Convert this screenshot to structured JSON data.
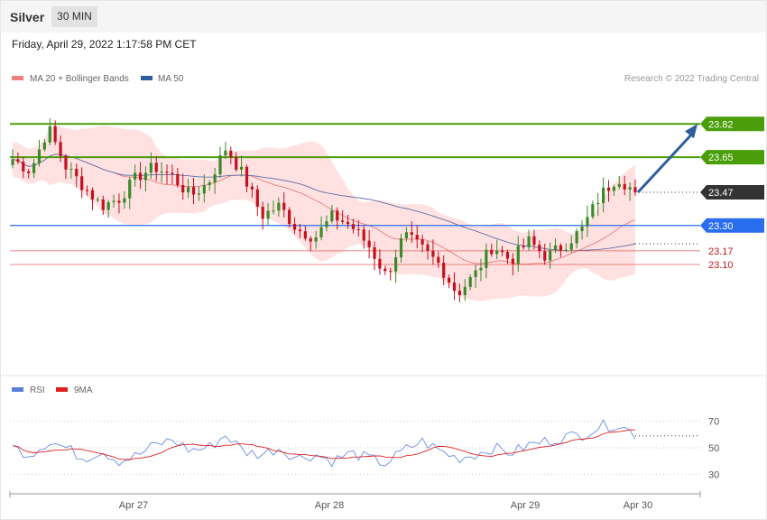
{
  "header": {
    "symbol": "Silver",
    "timeframe": "30 MIN",
    "datetime": "Friday, April 29, 2022 1:17:58 PM CET"
  },
  "legend": {
    "ma20": "MA 20 + Bollinger Bands",
    "ma50": "MA 50",
    "credit": "Research © 2022 Trading Central",
    "rsi": "RSI",
    "rsi_ma": "9MA"
  },
  "colors": {
    "resistance": "#4a9e0a",
    "pivot": "#2a6ef0",
    "support": "#e06060",
    "current": "#333333",
    "bull_candle": "#3a8a2a",
    "bear_candle": "#c4101e",
    "band_fill": "#ffdcdc",
    "ma20": "#e57070",
    "ma50": "#5b6fa8",
    "arrow": "#2f5d9c",
    "rsi": "#6b8de0",
    "rsi_ma": "#e02020"
  },
  "chart_data": [
    {
      "type": "candlestick",
      "x_labels": [
        "Apr 27",
        "Apr 28",
        "Apr 29",
        "Apr 30"
      ],
      "y_range": [
        22.55,
        23.9
      ],
      "levels": [
        {
          "value": 23.82,
          "label": "23.82",
          "kind": "resistance"
        },
        {
          "value": 23.65,
          "label": "23.65",
          "kind": "resistance"
        },
        {
          "value": 23.47,
          "label": "23.47",
          "kind": "current"
        },
        {
          "value": 23.3,
          "label": "23.30",
          "kind": "pivot"
        },
        {
          "value": 23.17,
          "label": "23.17",
          "kind": "support"
        },
        {
          "value": 23.1,
          "label": "23.10",
          "kind": "support"
        }
      ],
      "anchors": [
        23.64,
        23.58,
        23.8,
        23.6,
        23.5,
        23.4,
        23.44,
        23.55,
        23.6,
        23.55,
        23.45,
        23.52,
        23.7,
        23.55,
        23.35,
        23.4,
        23.28,
        23.24,
        23.35,
        23.3,
        23.2,
        23.04,
        23.25,
        23.18,
        23.1,
        22.95,
        23.05,
        23.2,
        23.12,
        23.22,
        23.14,
        23.2,
        23.28,
        23.45,
        23.55,
        23.47
      ],
      "projection": {
        "from": 23.47,
        "to": 23.82
      }
    },
    {
      "type": "line",
      "name": "RSI",
      "y_ticks": [
        70,
        50,
        30
      ],
      "series": [
        {
          "name": "RSI",
          "anchors": [
            50,
            45,
            55,
            50,
            42,
            48,
            40,
            44,
            52,
            56,
            48,
            50,
            60,
            47,
            45,
            50,
            42,
            45,
            40,
            46,
            42,
            38,
            48,
            55,
            48,
            42,
            45,
            50,
            46,
            52,
            55,
            58,
            60,
            66,
            68,
            60
          ]
        },
        {
          "name": "9MA",
          "anchors": [
            53,
            48,
            49,
            46,
            44,
            45,
            42,
            40,
            45,
            50,
            48,
            49,
            54,
            52,
            46,
            47,
            44,
            45,
            42,
            43,
            42,
            40,
            43,
            47,
            46,
            44,
            44,
            47,
            47,
            49,
            52,
            54,
            57,
            61,
            66,
            64
          ]
        }
      ],
      "current_value": 59
    }
  ]
}
